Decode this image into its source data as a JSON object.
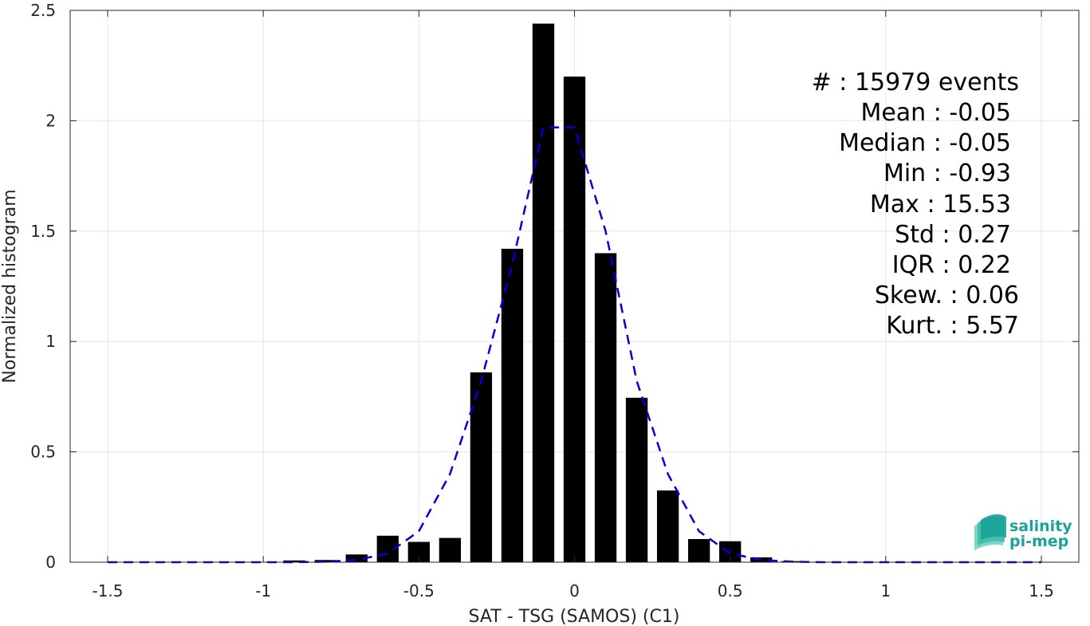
{
  "chart_data": {
    "type": "bar",
    "title": "",
    "xlabel": "SAT - TSG (SAMOS) (C1)",
    "ylabel": "Normalized histogram",
    "xlim": [
      -1.5,
      1.5
    ],
    "ylim": [
      0,
      2.5
    ],
    "x_ticks": [
      -1.5,
      -1,
      -0.5,
      0,
      0.5,
      1,
      1.5
    ],
    "x_tick_labels": [
      "-1.5",
      "-1",
      "-0.5",
      "0",
      "0.5",
      "1",
      "1.5"
    ],
    "y_ticks": [
      0,
      0.5,
      1,
      1.5,
      2,
      2.5
    ],
    "y_tick_labels": [
      "0",
      "0.5",
      "1",
      "1.5",
      "2",
      "2.5"
    ],
    "grid": true,
    "bar_width": 0.07,
    "bar_color": "#000000",
    "series": [
      {
        "type": "bar",
        "color": "#000000",
        "x": [
          -1.5,
          -1.4,
          -1.3,
          -1.2,
          -1.1,
          -1.0,
          -0.9,
          -0.8,
          -0.7,
          -0.6,
          -0.5,
          -0.4,
          -0.3,
          -0.2,
          -0.1,
          0.0,
          0.1,
          0.2,
          0.3,
          0.4,
          0.5,
          0.6,
          0.7,
          0.8,
          0.9,
          1.0,
          1.1,
          1.2,
          1.3,
          1.4,
          1.5
        ],
        "values": [
          0,
          0,
          0,
          0,
          0,
          0,
          0.008,
          0.01,
          0.035,
          0.12,
          0.092,
          0.11,
          0.86,
          1.42,
          2.44,
          2.2,
          1.4,
          0.745,
          0.325,
          0.105,
          0.095,
          0.022,
          0.005,
          0.002,
          0.001,
          0.001,
          0.001,
          0.001,
          0.001,
          0.001,
          0.002
        ]
      },
      {
        "type": "line",
        "style": "dashed",
        "color": "#0000dd",
        "x": [
          -1.5,
          -1.4,
          -1.3,
          -1.2,
          -1.1,
          -1.0,
          -0.9,
          -0.8,
          -0.7,
          -0.6,
          -0.5,
          -0.4,
          -0.3,
          -0.2,
          -0.1,
          0.0,
          0.1,
          0.2,
          0.3,
          0.4,
          0.5,
          0.6,
          0.7,
          0.8,
          0.9,
          1.0,
          1.1,
          1.2,
          1.3,
          1.4,
          1.5
        ],
        "values": [
          0,
          0,
          0,
          0,
          0,
          0,
          0,
          0.002,
          0.01,
          0.04,
          0.14,
          0.4,
          0.82,
          1.35,
          1.97,
          1.97,
          1.5,
          0.82,
          0.4,
          0.14,
          0.04,
          0.01,
          0.002,
          0,
          0,
          0,
          0,
          0,
          0,
          0,
          0
        ]
      }
    ]
  },
  "stats": {
    "lines": [
      "#  : 15979 events",
      "Mean : -0.05",
      "Median : -0.05",
      "Min : -0.93",
      "Max : 15.53",
      "Std : 0.27",
      "IQR : 0.22",
      "Skew. : 0.06",
      "Kurt. : 5.57"
    ]
  },
  "logo": {
    "line1": "salinity",
    "line2": "pi-mep",
    "colors": [
      "#1aa39a",
      "#7fd6c6"
    ]
  }
}
